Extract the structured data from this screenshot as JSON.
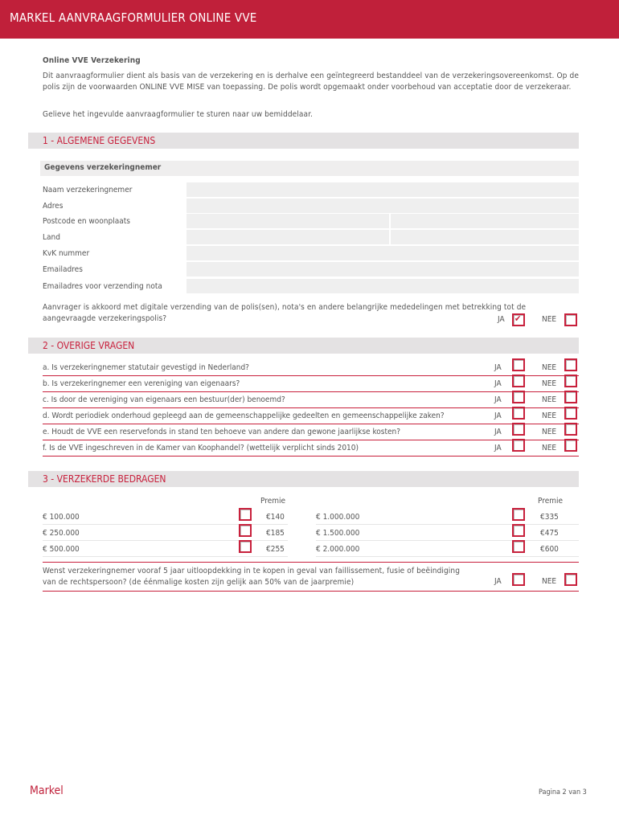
{
  "header": {
    "title": "MARKEL AANVRAAGFORMULIER ONLINE VVE"
  },
  "intro": {
    "heading": "Online VVE Verzekering",
    "paragraph": "Dit aanvraagformulier dient als basis van de verzekering en is derhalve een geïntegreerd bestanddeel van de verzekeringsovereenkomst. Op de polis zijn de voorwaarden ONLINE VVE MISE van toepassing. De polis wordt opgemaakt onder voorbehoud van acceptatie door de verzekeraar.",
    "instruction": "Gelieve het ingevulde aanvraagformulier te sturen naar uw bemiddelaar."
  },
  "section1": {
    "title": "1 - ALGEMENE GEGEVENS",
    "subtitle": "Gegevens verzekeringnemer",
    "fields": [
      {
        "label": "Naam verzekeringnemer",
        "value": ""
      },
      {
        "label": "Adres",
        "value": ""
      },
      {
        "label": "Postcode en woonplaats",
        "value": ""
      },
      {
        "label": "Land",
        "value": ""
      },
      {
        "label": "KvK nummer",
        "value": ""
      },
      {
        "label": "Emailadres",
        "value": ""
      },
      {
        "label": "Emailadres voor verzending nota",
        "value": ""
      }
    ],
    "consent": {
      "line1": "Aanvrager is akkoord met digitale verzending van de polis(sen), nota's en andere belangrijke mededelingen met betrekking tot de",
      "line2": "aangevraagde verzekeringspolis?",
      "ja_checked": true,
      "nee_checked": false
    }
  },
  "labels": {
    "ja": "JA",
    "nee": "NEE",
    "premie": "Premie"
  },
  "section2": {
    "title": "2 - OVERIGE VRAGEN",
    "questions": [
      "a. Is verzekeringnemer statutair gevestigd in Nederland?",
      "b. Is verzekeringnemer een vereniging van eigenaars?",
      "c. Is door de vereniging van eigenaars een bestuur(der) benoemd?",
      "d. Wordt periodiek onderhoud gepleegd aan de gemeenschappelijke gedeelten en gemeenschappelijke zaken?",
      "e. Houdt de VVE een reservefonds in stand ten behoeve van andere dan gewone jaarlijkse kosten?",
      "f. Is de VVE ingeschreven in de Kamer van Koophandel? (wettelijk verplicht sinds 2010)"
    ]
  },
  "section3": {
    "title": "3 - VERZEKERDE BEDRAGEN",
    "left": [
      {
        "amount": "€ 100.000",
        "premium": "€140"
      },
      {
        "amount": "€ 250.000",
        "premium": "€185"
      },
      {
        "amount": "€ 500.000",
        "premium": "€255"
      }
    ],
    "right": [
      {
        "amount": "€ 1.000.000",
        "premium": "€335"
      },
      {
        "amount": "€ 1.500.000",
        "premium": "€475"
      },
      {
        "amount": "€ 2.000.000",
        "premium": "€600"
      }
    ],
    "runoff": {
      "line1": "Wenst verzekeringnemer vooraf 5 jaar uitloopdekking in te kopen in geval van faillissement, fusie of beëindiging",
      "line2": "van de rechtspersoon? (de éénmalige kosten zijn gelijk aan 50% van de jaarpremie)"
    }
  },
  "footer": {
    "logo": "Markel",
    "page": "Pagina 2 van 3"
  },
  "colors": {
    "brand": "#c0203a",
    "section_bg": "#e4e2e3"
  }
}
